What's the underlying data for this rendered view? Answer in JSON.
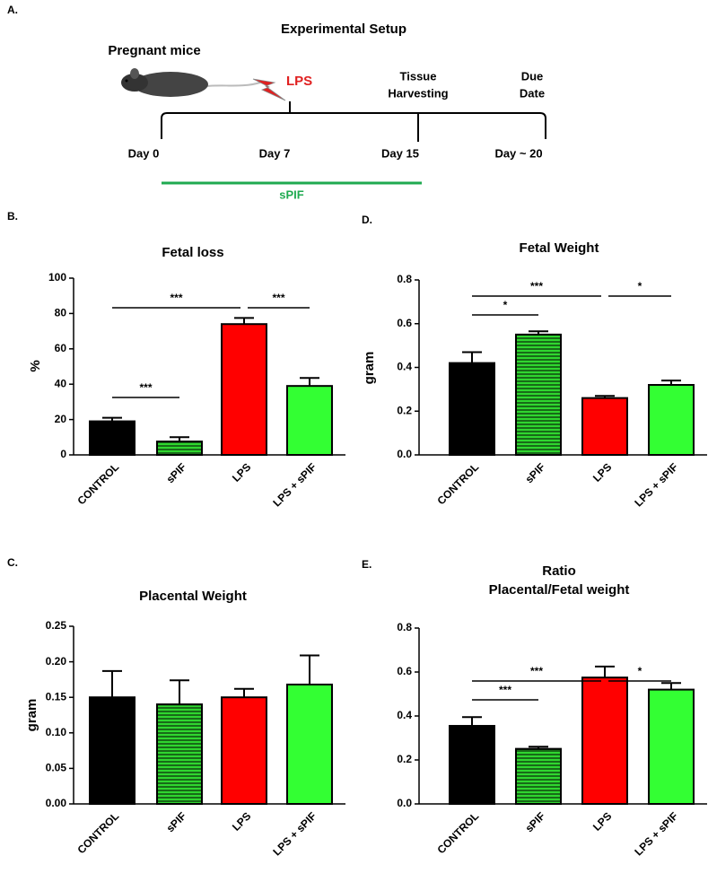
{
  "setup": {
    "panel_label": "A.",
    "title": "Experimental Setup",
    "subject": "Pregnant mice",
    "treatment": "LPS",
    "harvest": [
      "Tissue",
      "Harvesting"
    ],
    "due": [
      "Due",
      "Date"
    ],
    "timeline": [
      "Day 0",
      "Day 7",
      "Day 15",
      "Day ~ 20"
    ],
    "treatment_bar": "sPIF"
  },
  "chart_data": [
    {
      "type": "bar",
      "panel_label": "B.",
      "title": "Fetal loss",
      "ylabel": "%",
      "categories": [
        "CONTROL",
        "sPIF",
        "LPS",
        "LPS + sPIF"
      ],
      "values": [
        19,
        7.5,
        74,
        39
      ],
      "errors": [
        2,
        2.5,
        3.5,
        4.5
      ],
      "colors": [
        "#000000",
        "#2fd62f",
        "#ff0000",
        "#33ff33"
      ],
      "hatched": [
        false,
        true,
        false,
        false
      ],
      "ylim": [
        0,
        100
      ],
      "yticks": [
        0,
        20,
        40,
        60,
        80,
        100
      ],
      "annotations": [
        "***",
        "***",
        "***"
      ]
    },
    {
      "type": "bar",
      "panel_label": "C.",
      "title": "Placental Weight",
      "ylabel": "gram",
      "categories": [
        "CONTROL",
        "sPIF",
        "LPS",
        "LPS + sPIF"
      ],
      "values": [
        0.15,
        0.14,
        0.15,
        0.168
      ],
      "errors": [
        0.037,
        0.034,
        0.012,
        0.041
      ],
      "colors": [
        "#000000",
        "#2fd62f",
        "#ff0000",
        "#33ff33"
      ],
      "hatched": [
        false,
        true,
        false,
        false
      ],
      "ylim": [
        0,
        0.25
      ],
      "yticks": [
        {
          "value": 0,
          "label": "0.00"
        },
        {
          "value": 0.05,
          "label": "0.05"
        },
        {
          "value": 0.1,
          "label": "0.10"
        },
        {
          "value": 0.15,
          "label": "0.15"
        },
        {
          "value": 0.2,
          "label": "0.20"
        },
        {
          "value": 0.25,
          "label": "0.25"
        }
      ],
      "annotations": []
    },
    {
      "type": "bar",
      "panel_label": "D.",
      "title": "Fetal  Weight",
      "ylabel": "gram",
      "categories": [
        "CONTROL",
        "sPIF",
        "LPS",
        "LPS + sPIF"
      ],
      "values": [
        0.42,
        0.55,
        0.26,
        0.32
      ],
      "errors": [
        0.05,
        0.015,
        0.01,
        0.02
      ],
      "colors": [
        "#000000",
        "#2fd62f",
        "#ff0000",
        "#33ff33"
      ],
      "hatched": [
        false,
        true,
        false,
        false
      ],
      "ylim": [
        0,
        0.8
      ],
      "yticks": [
        {
          "value": 0,
          "label": "0.0"
        },
        0.2,
        0.4,
        0.6,
        0.8
      ],
      "annotations": [
        "*",
        "***",
        "*"
      ]
    },
    {
      "type": "bar",
      "panel_label": "E.",
      "title": [
        "Ratio",
        "Placental/Fetal weight"
      ],
      "categories": [
        "CONTROL",
        "sPIF",
        "LPS",
        "LPS + sPIF"
      ],
      "values": [
        0.355,
        0.25,
        0.575,
        0.52
      ],
      "errors": [
        0.04,
        0.01,
        0.05,
        0.03
      ],
      "colors": [
        "#000000",
        "#2fd62f",
        "#ff0000",
        "#33ff33"
      ],
      "hatched": [
        false,
        true,
        false,
        false
      ],
      "ylim": [
        0,
        0.8
      ],
      "yticks": [
        {
          "value": 0,
          "label": "0.0"
        },
        0.2,
        0.4,
        0.6,
        0.8
      ],
      "annotations": [
        "***",
        "***",
        "*"
      ]
    }
  ]
}
